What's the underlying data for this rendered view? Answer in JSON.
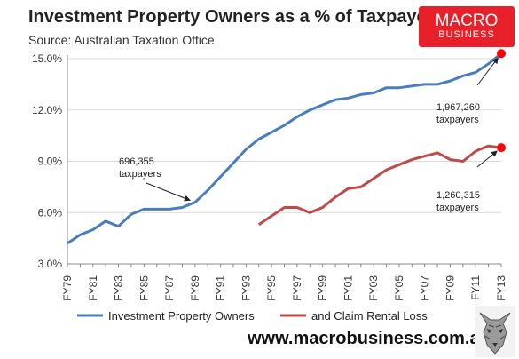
{
  "header": {
    "title": "Investment Property Owners as a % of Taxpayers",
    "subtitle": "Source: Australian Taxation Office"
  },
  "logo": {
    "line1": "MACRO",
    "line2": "BUSINESS",
    "color": "#e8202a"
  },
  "footer": {
    "website": "www.macrobusiness.com.au"
  },
  "colors": {
    "blue": "#4a7ebb",
    "red": "#be4b48",
    "marker": "#ff0000"
  },
  "chart_data": {
    "type": "line",
    "title": "Investment Property Owners as a % of Taxpayers",
    "xlabel": "",
    "ylabel": "",
    "ylim": [
      3.0,
      15.0
    ],
    "yticks": [
      "3.0%",
      "6.0%",
      "9.0%",
      "12.0%",
      "15.0%"
    ],
    "ytick_values": [
      3,
      6,
      9,
      12,
      15
    ],
    "grid": true,
    "legend": "bottom",
    "categories": [
      "FY79",
      "FY80",
      "FY81",
      "FY82",
      "FY83",
      "FY84",
      "FY85",
      "FY86",
      "FY87",
      "FY88",
      "FY89",
      "FY90",
      "FY91",
      "FY92",
      "FY93",
      "FY94",
      "FY95",
      "FY96",
      "FY97",
      "FY98",
      "FY99",
      "FY00",
      "FY01",
      "FY02",
      "FY03",
      "FY04",
      "FY05",
      "FY06",
      "FY07",
      "FY08",
      "FY09",
      "FY10",
      "FY11",
      "FY12",
      "FY13"
    ],
    "xtick_labels": [
      "FY79",
      "FY81",
      "FY83",
      "FY85",
      "FY87",
      "FY89",
      "FY91",
      "FY93",
      "FY95",
      "FY97",
      "FY99",
      "FY01",
      "FY03",
      "FY05",
      "FY07",
      "FY09",
      "FY11",
      "FY13"
    ],
    "series": [
      {
        "name": "Investment Property Owners",
        "color": "#4a7ebb",
        "values": [
          4.2,
          4.7,
          5.0,
          5.5,
          5.2,
          5.9,
          6.2,
          6.2,
          6.2,
          6.3,
          6.6,
          7.3,
          8.1,
          8.9,
          9.7,
          10.3,
          10.7,
          11.1,
          11.6,
          12.0,
          12.3,
          12.6,
          12.7,
          12.9,
          13.0,
          13.3,
          13.3,
          13.4,
          13.5,
          13.5,
          13.7,
          14.0,
          14.2,
          14.7,
          15.3
        ]
      },
      {
        "name": "and Claim Rental Loss",
        "color": "#be4b48",
        "values": [
          null,
          null,
          null,
          null,
          null,
          null,
          null,
          null,
          null,
          null,
          null,
          null,
          null,
          null,
          null,
          5.3,
          5.8,
          6.3,
          6.3,
          6.0,
          6.3,
          6.9,
          7.4,
          7.5,
          8.0,
          8.5,
          8.8,
          9.1,
          9.3,
          9.5,
          9.1,
          9.0,
          9.6,
          9.9,
          9.8
        ]
      }
    ],
    "annotations": [
      {
        "line1": "696,355",
        "line2": "taxpayers",
        "series": 0,
        "index": 10
      },
      {
        "line1": "1,967,260",
        "line2": "taxpayers",
        "series": 0,
        "index": 34
      },
      {
        "line1": "1,260,315",
        "line2": "taxpayers",
        "series": 1,
        "index": 34
      }
    ]
  }
}
